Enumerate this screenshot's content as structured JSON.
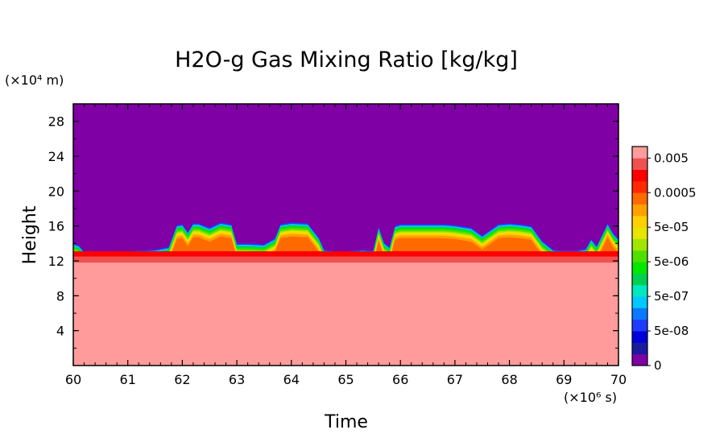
{
  "chart_data": {
    "type": "heatmap",
    "title": "H2O-g Gas Mixing Ratio [kg/kg]",
    "xlabel": "Time",
    "ylabel": "Height",
    "x_unit": "(×10⁶ s)",
    "y_unit": "(×10⁴ m)",
    "xlim": [
      60,
      70
    ],
    "ylim": [
      0,
      30
    ],
    "x_ticks": [
      "60",
      "61",
      "62",
      "63",
      "64",
      "65",
      "66",
      "67",
      "68",
      "69",
      "70"
    ],
    "y_ticks": [
      "4",
      "8",
      "12",
      "16",
      "20",
      "24",
      "28"
    ],
    "colorbar": {
      "colors": [
        "#7f00a5",
        "#1a1a9e",
        "#0000d8",
        "#1e3cff",
        "#0a78ff",
        "#00c8ff",
        "#00e8c0",
        "#00d050",
        "#00e800",
        "#50e000",
        "#a0e600",
        "#e6e600",
        "#ffd000",
        "#ffa000",
        "#ff6a00",
        "#ff2a00",
        "#ff0000",
        "#f05050",
        "#ff9b9b"
      ],
      "labels": [
        "0",
        "5e-08",
        "5e-07",
        "5e-06",
        "5e-05",
        "0.0005",
        "0.005"
      ]
    },
    "moisture_top_profile": {
      "x": [
        60.0,
        60.1,
        60.2,
        60.5,
        61.0,
        61.5,
        61.75,
        61.9,
        62.0,
        62.1,
        62.2,
        62.3,
        62.5,
        62.7,
        62.9,
        63.0,
        63.2,
        63.5,
        63.7,
        63.8,
        64.0,
        64.3,
        64.5,
        64.6,
        64.8,
        65.0,
        65.3,
        65.5,
        65.6,
        65.7,
        65.8,
        65.9,
        66.0,
        66.2,
        66.5,
        66.8,
        67.0,
        67.3,
        67.5,
        67.8,
        68.0,
        68.2,
        68.4,
        68.6,
        68.8,
        69.0,
        69.2,
        69.4,
        69.5,
        69.6,
        69.8,
        69.9,
        70.0
      ],
      "y": [
        14.0,
        13.8,
        13.1,
        13.0,
        13.1,
        13.3,
        13.6,
        16.1,
        16.2,
        15.3,
        16.3,
        16.3,
        15.8,
        16.4,
        16.2,
        14.0,
        14.0,
        13.9,
        14.6,
        16.2,
        16.4,
        16.3,
        14.7,
        13.3,
        13.1,
        13.1,
        13.3,
        13.2,
        15.9,
        14.1,
        13.6,
        16.0,
        16.2,
        16.2,
        16.2,
        16.2,
        16.1,
        15.8,
        14.9,
        16.2,
        16.3,
        16.2,
        16.0,
        14.3,
        13.3,
        13.2,
        13.2,
        13.4,
        14.5,
        13.7,
        16.3,
        15.2,
        14.5
      ],
      "bands_from_surface": [
        {
          "depth": 1.6,
          "color_index": 14
        },
        {
          "depth": 1.3,
          "color_index": 13
        },
        {
          "depth": 1.1,
          "color_index": 12
        },
        {
          "depth": 0.95,
          "color_index": 11
        },
        {
          "depth": 0.8,
          "color_index": 10
        },
        {
          "depth": 0.6,
          "color_index": 9
        },
        {
          "depth": 0.45,
          "color_index": 8
        },
        {
          "depth": 0.3,
          "color_index": 7
        },
        {
          "depth": 0.15,
          "color_index": 5
        },
        {
          "depth": 0.0,
          "color_index": 3
        }
      ]
    },
    "lower_layers": [
      {
        "top": 13.1,
        "color_index": 16
      },
      {
        "top": 12.5,
        "color_index": 17
      },
      {
        "top": 11.8,
        "color_index": 18
      }
    ]
  }
}
